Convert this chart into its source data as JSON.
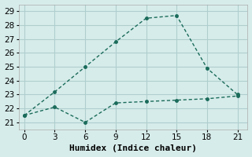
{
  "line1_x": [
    0,
    3,
    6,
    9,
    12,
    15,
    18,
    21
  ],
  "line1_y": [
    21.5,
    23.2,
    25.0,
    26.8,
    28.5,
    28.7,
    24.9,
    23.0
  ],
  "line2_x": [
    0,
    3,
    6,
    9,
    12,
    15,
    18,
    21
  ],
  "line2_y": [
    21.5,
    22.1,
    21.0,
    22.4,
    22.5,
    22.6,
    22.7,
    22.9
  ],
  "line_color": "#1a6b5a",
  "background_color": "#d6ecea",
  "grid_color": "#b0cece",
  "xlabel": "Humidex (Indice chaleur)",
  "xlim": [
    -0.5,
    22
  ],
  "ylim": [
    20.5,
    29.5
  ],
  "xticks": [
    0,
    3,
    6,
    9,
    12,
    15,
    18,
    21
  ],
  "yticks": [
    21,
    22,
    23,
    24,
    25,
    26,
    27,
    28,
    29
  ],
  "title_fontsize": 9,
  "label_fontsize": 8,
  "tick_fontsize": 7.5
}
